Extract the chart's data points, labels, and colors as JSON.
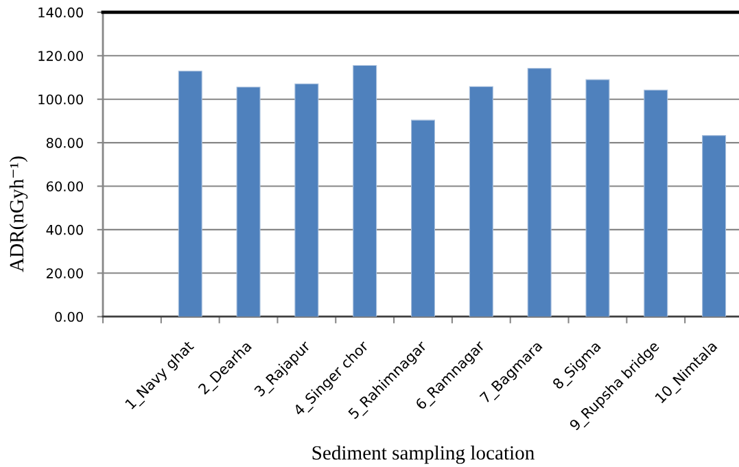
{
  "chart_data": {
    "type": "bar",
    "xlabel": "Sediment sampling location",
    "ylabel": "ADR(nGyh⁻¹)",
    "categories": [
      null,
      "1_Navy ghat",
      "2_Dearha",
      "3_Rajapur",
      "4_Singer chor",
      "5_Rahimnagar",
      "6_Ramnagar",
      "7_Bagmara",
      "8_Sigma",
      "9_Rupsha bridge",
      "10_Nimtala"
    ],
    "values": [
      null,
      112.9,
      105.6,
      107.1,
      115.5,
      90.4,
      105.8,
      114.2,
      109.0,
      104.2,
      83.3
    ],
    "color": "#4f81bd",
    "ylim": [
      0,
      140
    ],
    "yticks": [
      {
        "value": 0,
        "label": "0.00"
      },
      {
        "value": 20,
        "label": "20.00"
      },
      {
        "value": 40,
        "label": "40.00"
      },
      {
        "value": 60,
        "label": "60.00"
      },
      {
        "value": 80,
        "label": "80.00"
      },
      {
        "value": 100,
        "label": "100.00"
      },
      {
        "value": 120,
        "label": "120.00"
      },
      {
        "value": 140,
        "label": "140.00"
      }
    ],
    "grid": "y"
  }
}
